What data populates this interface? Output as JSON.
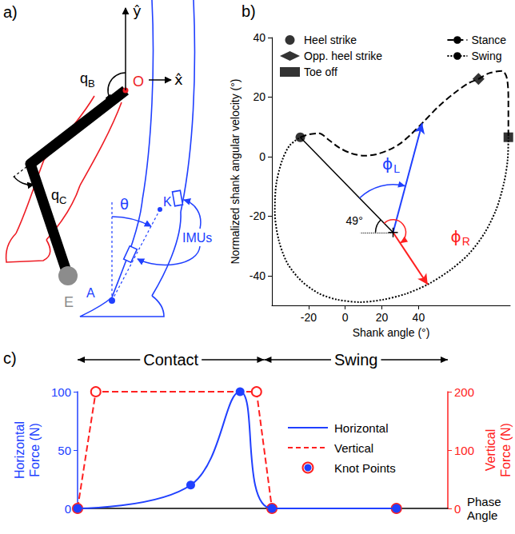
{
  "diagram": {
    "panel": "a)",
    "y_axis": "ŷ",
    "x_axis": "x̂",
    "origin": "O",
    "joint_angles": [
      {
        "text": "q",
        "sub": "B"
      },
      {
        "text": "q",
        "sub": "C"
      }
    ],
    "end_effector": "E",
    "shank_angle": "θ",
    "knee": "K",
    "ankle": "A",
    "sensors": "IMUs"
  },
  "chart_data": [
    {
      "panel": "b)",
      "type": "line",
      "xlabel": "Shank angle (°)",
      "ylabel": "Normalized shank angular velocity (°)",
      "xlim": [
        -40,
        90
      ],
      "xticks": [
        -20,
        0,
        20,
        40
      ],
      "ylim": [
        -50,
        40
      ],
      "yticks": [
        -40,
        -20,
        0,
        20,
        40
      ],
      "grid": false,
      "legend": "top",
      "series": [
        {
          "name": "Heel strike",
          "type": "scatter",
          "marker": "circle",
          "color": "#000000",
          "x": [
            -24.5
          ],
          "values": [
            6.5
          ]
        },
        {
          "name": "Opp. heel strike",
          "type": "scatter",
          "marker": "diamond",
          "color": "#000000",
          "x": [
            72.7
          ],
          "values": [
            26.1
          ]
        },
        {
          "name": "Toe off",
          "type": "scatter",
          "marker": "square",
          "color": "#000000",
          "x": [
            89
          ],
          "values": [
            6.5
          ]
        },
        {
          "name": "Stance",
          "type": "line",
          "line_style": "dashed",
          "color": "#000000",
          "x": [
            -24.5,
            -19.6,
            -14.3,
            -9.0,
            -3.3,
            3.3,
            10.2,
            17.1,
            23.7,
            29.8,
            35.9,
            42.9,
            51.0,
            59.2,
            67.3,
            72.7,
            78.4,
            85.7,
            88.2,
            89.0,
            89.0
          ],
          "values": [
            6.5,
            7.5,
            7.8,
            5.6,
            3.0,
            1.1,
            0.3,
            0.8,
            2.2,
            4.3,
            7.5,
            11.8,
            16.9,
            21.2,
            24.7,
            26.1,
            28.0,
            28.8,
            26.3,
            19.1,
            6.5
          ]
        },
        {
          "name": "Swing",
          "type": "line",
          "line_style": "dotted",
          "color": "#000000",
          "x": [
            89.0,
            88.6,
            86.5,
            82.4,
            75.9,
            67.3,
            57.1,
            44.9,
            32.7,
            20.4,
            8.2,
            -4.1,
            -14.3,
            -23.7,
            -31.4,
            -36.3,
            -38.4,
            -37.6,
            -34.3,
            -30.2,
            -24.5
          ],
          "values": [
            6.5,
            -1.1,
            -9.1,
            -17.7,
            -25.8,
            -32.8,
            -38.2,
            -43.0,
            -46.2,
            -48.1,
            -48.9,
            -48.1,
            -46.0,
            -41.9,
            -36.0,
            -28.0,
            -18.5,
            -9.1,
            -1.1,
            3.8,
            6.5
          ]
        }
      ],
      "annotations": {
        "origin": [
          26.1,
          -25.5
        ],
        "reference": [
          -24.5,
          6.5
        ],
        "horizontal_end": 8.2,
        "reference_label": "49°",
        "reference_label_at": [
          5,
          -21.5
        ],
        "arrows": [
          {
            "label": {
              "text": "ϕ",
              "sub": "L"
            },
            "color": "#2040ff",
            "to": [
              42,
              11.2
            ],
            "label_at": [
              26,
              -2.4
            ]
          },
          {
            "label": {
              "text": "ϕ",
              "sub": "R"
            },
            "color": "#ff2020",
            "to": [
              45,
              -43
            ],
            "label_at": [
              63.3,
              -27
            ]
          }
        ]
      }
    },
    {
      "panel": "c)",
      "type": "line",
      "xlabel": "Phase Angle",
      "ylabel": "Horizontal Force (N)",
      "y2label": "Vertical Force (N)",
      "xlim": [
        0,
        360
      ],
      "ylim": [
        0,
        100
      ],
      "yticks": [
        0,
        50,
        100
      ],
      "y2lim": [
        0,
        200
      ],
      "y2ticks": [
        0,
        100,
        200
      ],
      "tick_labels": "y",
      "grid": false,
      "legend": "right",
      "series": [
        {
          "name": "Horizontal",
          "type": "spline",
          "line_style": "solid",
          "marker": "circle",
          "color": "#2040ff",
          "x": [
            0,
            110,
            158,
            189,
            310
          ],
          "values": [
            0,
            20,
            100,
            0,
            0
          ]
        },
        {
          "name": "Vertical",
          "type": "line",
          "axis": "y2",
          "line_style": "dashed",
          "marker": "open circle",
          "color": "#ff2020",
          "x": [
            0,
            17.7,
            174,
            189,
            310
          ],
          "values": [
            0,
            200,
            200,
            0,
            0
          ]
        }
      ],
      "knots_label": "Knot Points",
      "phases": [
        {
          "label": "Contact",
          "from": 0,
          "to": 181.5
        },
        {
          "label": "Swing",
          "from": 181.5,
          "to": 360
        }
      ]
    }
  ]
}
